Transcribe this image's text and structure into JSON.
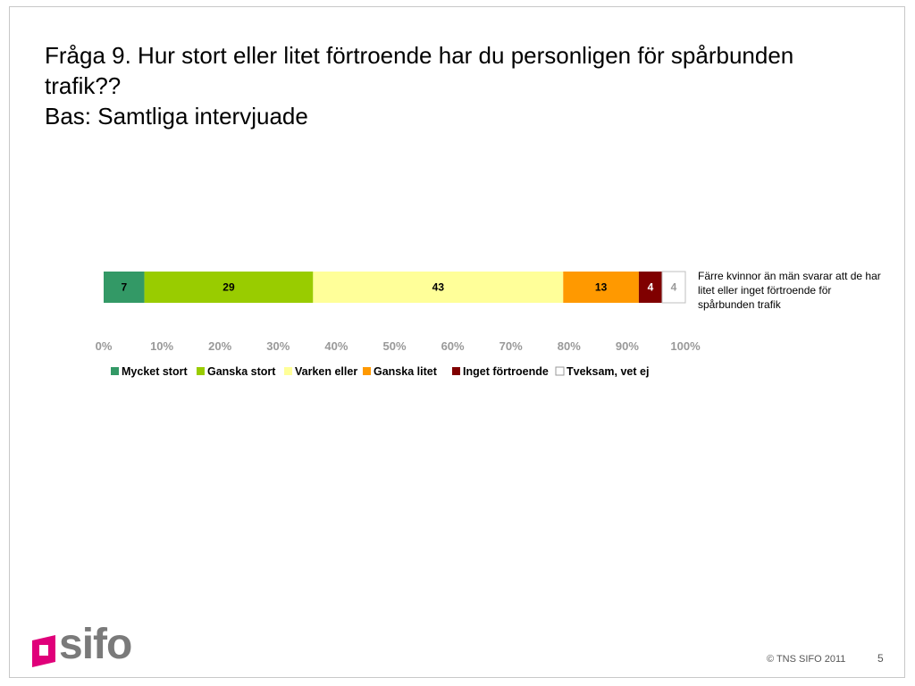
{
  "slide": {
    "title_line1": "Fråga 9. Hur stort eller litet förtroende har du personligen för spårbunden",
    "title_line2": "trafik??",
    "subtitle": "Bas: Samtliga intervjuade",
    "note": "Färre kvinnor än män svarar att de har litet eller inget förtroende för spårbunden trafik",
    "footer": "© TNS SIFO 2011",
    "page_number": "5",
    "logo_text": "sifo",
    "logo_icon": "sifo-square-logo",
    "logo_color": "#e0007a"
  },
  "chart_data": {
    "type": "bar",
    "orientation": "horizontal-stacked-100",
    "categories": [
      ""
    ],
    "series": [
      {
        "name": "Mycket stort",
        "values": [
          7
        ],
        "color": "#339966"
      },
      {
        "name": "Ganska stort",
        "values": [
          29
        ],
        "color": "#99cc00"
      },
      {
        "name": "Varken eller",
        "values": [
          43
        ],
        "color": "#ffff99"
      },
      {
        "name": "Ganska litet",
        "values": [
          13
        ],
        "color": "#ff9900"
      },
      {
        "name": "Inget förtroende",
        "values": [
          4
        ],
        "color": "#800000"
      },
      {
        "name": "Tveksam, vet ej",
        "values": [
          4
        ],
        "color": "#ffffff"
      }
    ],
    "label_colors": [
      "#000000",
      "#000000",
      "#000000",
      "#000000",
      "#ffffff",
      "#999999"
    ],
    "xlim": [
      0,
      100
    ],
    "xticks": [
      "0%",
      "10%",
      "20%",
      "30%",
      "40%",
      "50%",
      "60%",
      "70%",
      "80%",
      "90%",
      "100%"
    ],
    "legend": "bottom",
    "grid": false
  }
}
